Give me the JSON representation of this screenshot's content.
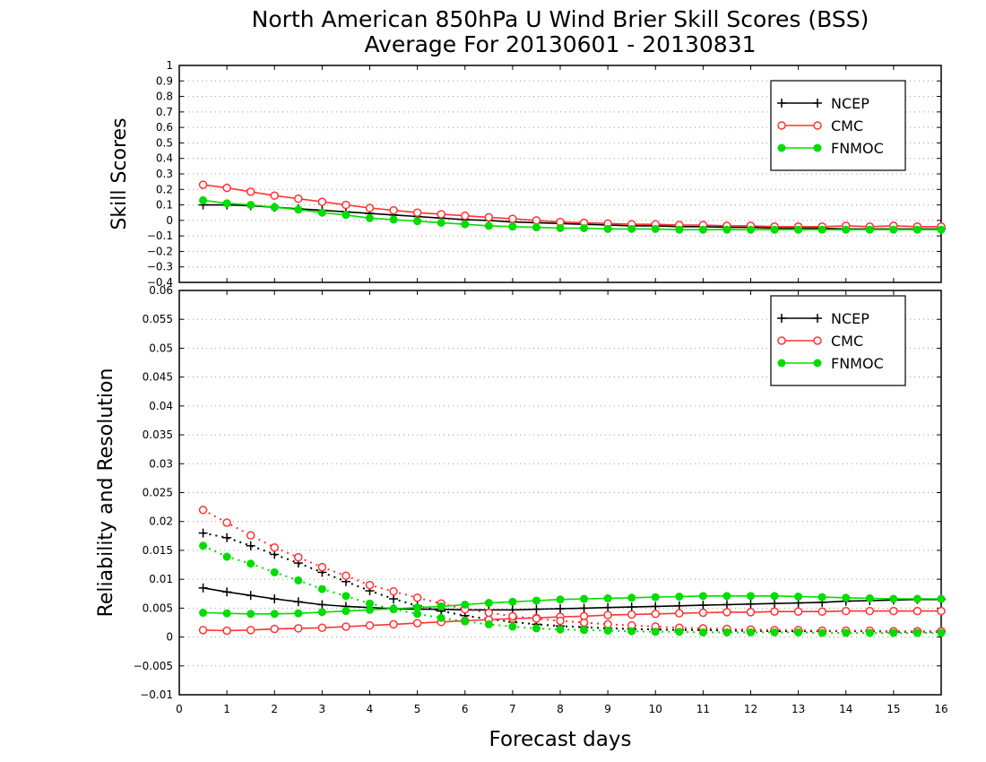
{
  "chart_data": [
    {
      "type": "line",
      "title": "North American 850hPa U Wind Brier Skill Scores (BSS)",
      "subtitle": "Average For 20130601 - 20130831",
      "xlabel": "Forecast days",
      "ylabel": "Skill Scores",
      "xlim": [
        0,
        16
      ],
      "ylim": [
        -0.4,
        1
      ],
      "x_ticks": [
        "0",
        "1",
        "2",
        "3",
        "4",
        "5",
        "6",
        "7",
        "8",
        "9",
        "10",
        "11",
        "12",
        "13",
        "14",
        "15",
        "16"
      ],
      "y_ticks": [
        "−0.4",
        "−0.3",
        "−0.2",
        "−0.1",
        "0",
        "0.1",
        "0.2",
        "0.3",
        "0.4",
        "0.5",
        "0.6",
        "0.7",
        "0.8",
        "0.9",
        "1"
      ],
      "grid": "horizontal dotted",
      "legend": "top-right",
      "x": [
        0.5,
        1,
        1.5,
        2,
        2.5,
        3,
        3.5,
        4,
        4.5,
        5,
        5.5,
        6,
        6.5,
        7,
        7.5,
        8,
        8.5,
        9,
        9.5,
        10,
        10.5,
        11,
        11.5,
        12,
        12.5,
        13,
        13.5,
        14,
        14.5,
        15,
        15.5,
        16
      ],
      "series": [
        {
          "name": "NCEP",
          "color": "#000000",
          "marker": "plus",
          "values": [
            0.1,
            0.1,
            0.095,
            0.085,
            0.075,
            0.065,
            0.055,
            0.045,
            0.035,
            0.025,
            0.015,
            0.005,
            0.0,
            -0.01,
            -0.015,
            -0.02,
            -0.025,
            -0.03,
            -0.035,
            -0.035,
            -0.04,
            -0.04,
            -0.045,
            -0.045,
            -0.05,
            -0.05,
            -0.05,
            -0.055,
            -0.055,
            -0.055,
            -0.055,
            -0.055
          ]
        },
        {
          "name": "CMC",
          "color": "#ff3333",
          "marker": "open-circle",
          "values": [
            0.23,
            0.21,
            0.185,
            0.16,
            0.14,
            0.12,
            0.1,
            0.08,
            0.065,
            0.05,
            0.04,
            0.03,
            0.02,
            0.01,
            0.0,
            -0.01,
            -0.015,
            -0.02,
            -0.025,
            -0.025,
            -0.03,
            -0.03,
            -0.035,
            -0.035,
            -0.04,
            -0.04,
            -0.04,
            -0.035,
            -0.04,
            -0.035,
            -0.04,
            -0.04
          ]
        },
        {
          "name": "FNMOC",
          "color": "#00dd00",
          "marker": "filled-circle",
          "values": [
            0.13,
            0.11,
            0.1,
            0.085,
            0.07,
            0.05,
            0.035,
            0.015,
            0.005,
            -0.005,
            -0.015,
            -0.025,
            -0.035,
            -0.04,
            -0.045,
            -0.05,
            -0.05,
            -0.055,
            -0.055,
            -0.055,
            -0.06,
            -0.06,
            -0.06,
            -0.06,
            -0.06,
            -0.06,
            -0.06,
            -0.06,
            -0.06,
            -0.06,
            -0.06,
            -0.06
          ]
        }
      ]
    },
    {
      "type": "line",
      "xlabel": "Forecast days",
      "ylabel": "Reliability and Resolution",
      "xlim": [
        0,
        16
      ],
      "ylim": [
        -0.01,
        0.06
      ],
      "x_ticks": [
        "0",
        "1",
        "2",
        "3",
        "4",
        "5",
        "6",
        "7",
        "8",
        "9",
        "10",
        "11",
        "12",
        "13",
        "14",
        "15",
        "16"
      ],
      "y_ticks": [
        "−0.01",
        "−0.005",
        "0",
        "0.005",
        "0.01",
        "0.015",
        "0.02",
        "0.025",
        "0.03",
        "0.035",
        "0.04",
        "0.045",
        "0.05",
        "0.055",
        "0.06"
      ],
      "grid": "horizontal dotted",
      "legend": "top-right",
      "x": [
        0.5,
        1,
        1.5,
        2,
        2.5,
        3,
        3.5,
        4,
        4.5,
        5,
        5.5,
        6,
        6.5,
        7,
        7.5,
        8,
        8.5,
        9,
        9.5,
        10,
        10.5,
        11,
        11.5,
        12,
        12.5,
        13,
        13.5,
        14,
        14.5,
        15,
        15.5,
        16
      ],
      "series": [
        {
          "name": "NCEP",
          "color": "#000000",
          "marker": "plus",
          "style": "solid",
          "values": [
            0.0085,
            0.0078,
            0.0072,
            0.0066,
            0.0061,
            0.0056,
            0.0053,
            0.0051,
            0.0049,
            0.0048,
            0.0048,
            0.0047,
            0.0047,
            0.0047,
            0.0048,
            0.0049,
            0.005,
            0.0051,
            0.0052,
            0.0053,
            0.0054,
            0.0055,
            0.0056,
            0.0057,
            0.0058,
            0.0059,
            0.006,
            0.0062,
            0.0063,
            0.0064,
            0.0065,
            0.0065
          ]
        },
        {
          "name": "NCEP",
          "color": "#000000",
          "marker": "plus",
          "style": "dotted",
          "values": [
            0.018,
            0.0172,
            0.0158,
            0.0143,
            0.0128,
            0.0112,
            0.0096,
            0.008,
            0.0066,
            0.0054,
            0.0045,
            0.0037,
            0.0031,
            0.0026,
            0.0022,
            0.0019,
            0.0017,
            0.0015,
            0.0014,
            0.0013,
            0.0012,
            0.0012,
            0.0011,
            0.0011,
            0.001,
            0.001,
            0.001,
            0.001,
            0.001,
            0.0009,
            0.0009,
            0.0009
          ]
        },
        {
          "name": "CMC",
          "color": "#ff3333",
          "marker": "open-circle",
          "style": "solid",
          "values": [
            0.0012,
            0.0011,
            0.0012,
            0.0014,
            0.0015,
            0.0016,
            0.0018,
            0.002,
            0.0022,
            0.0024,
            0.0026,
            0.0028,
            0.003,
            0.0032,
            0.0033,
            0.0035,
            0.0036,
            0.0038,
            0.0039,
            0.004,
            0.0041,
            0.0042,
            0.0043,
            0.0043,
            0.0044,
            0.0044,
            0.0044,
            0.0045,
            0.0045,
            0.0045,
            0.0045,
            0.0045
          ]
        },
        {
          "name": "CMC",
          "color": "#ff3333",
          "marker": "open-circle",
          "style": "dotted",
          "values": [
            0.022,
            0.0198,
            0.0176,
            0.0155,
            0.0138,
            0.0121,
            0.0106,
            0.009,
            0.0079,
            0.0068,
            0.0058,
            0.0048,
            0.0042,
            0.0036,
            0.0032,
            0.0028,
            0.0025,
            0.0022,
            0.002,
            0.0018,
            0.0016,
            0.0015,
            0.0014,
            0.0013,
            0.0012,
            0.0012,
            0.0011,
            0.0011,
            0.0011,
            0.001,
            0.001,
            0.001
          ]
        },
        {
          "name": "FNMOC",
          "color": "#00dd00",
          "marker": "filled-circle",
          "style": "solid",
          "values": [
            0.0042,
            0.0041,
            0.004,
            0.004,
            0.0041,
            0.0043,
            0.0045,
            0.0047,
            0.0049,
            0.0051,
            0.0053,
            0.0056,
            0.0059,
            0.0061,
            0.0063,
            0.0065,
            0.0066,
            0.0067,
            0.0068,
            0.0069,
            0.007,
            0.0071,
            0.0071,
            0.0071,
            0.0071,
            0.007,
            0.0069,
            0.0068,
            0.0067,
            0.0066,
            0.0066,
            0.0066
          ]
        },
        {
          "name": "FNMOC",
          "color": "#00dd00",
          "marker": "filled-circle",
          "style": "dotted",
          "values": [
            0.0158,
            0.0139,
            0.0127,
            0.0112,
            0.0098,
            0.0083,
            0.0071,
            0.0058,
            0.0048,
            0.004,
            0.0033,
            0.0027,
            0.0022,
            0.0018,
            0.0015,
            0.0013,
            0.0012,
            0.0011,
            0.001,
            0.0009,
            0.0009,
            0.0008,
            0.0008,
            0.0008,
            0.0008,
            0.0008,
            0.0007,
            0.0007,
            0.0007,
            0.0007,
            0.0007,
            0.0007
          ]
        }
      ]
    }
  ]
}
